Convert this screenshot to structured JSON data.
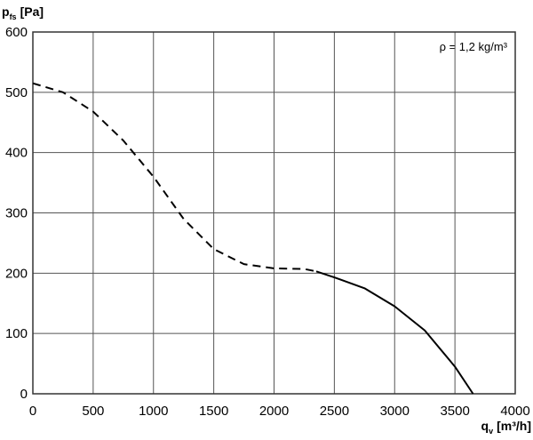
{
  "chart_data": {
    "type": "line",
    "y_label": {
      "symbol": "p",
      "subscript": "fs",
      "unit": "[Pa]"
    },
    "x_label": {
      "symbol": "q",
      "subscript": "v",
      "unit": "[m³/h]"
    },
    "annotation": "ρ = 1,2 kg/m³",
    "series": [
      {
        "color": "#000000",
        "dash": true,
        "x": [
          0,
          250,
          500,
          750,
          1000,
          1250,
          1500,
          1750,
          2000,
          2250,
          2350
        ],
        "values": [
          515,
          500,
          468,
          420,
          360,
          290,
          240,
          215,
          208,
          207,
          203
        ]
      },
      {
        "color": "#000000",
        "dash": false,
        "x": [
          2350,
          2500,
          2750,
          3000,
          3250,
          3500,
          3650
        ],
        "values": [
          203,
          193,
          175,
          145,
          105,
          45,
          0
        ]
      }
    ],
    "xlim": [
      0,
      4000
    ],
    "xticks": [
      0,
      500,
      1000,
      1500,
      2000,
      2500,
      3000,
      3500,
      4000
    ],
    "ylim": [
      0,
      600
    ],
    "yticks": [
      0,
      100,
      200,
      300,
      400,
      500,
      600
    ],
    "grid": true
  }
}
